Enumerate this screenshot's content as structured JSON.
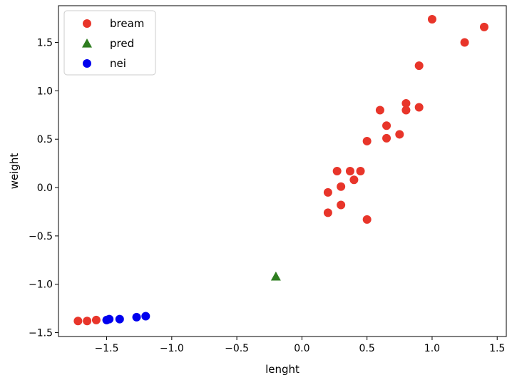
{
  "chart_data": {
    "type": "scatter",
    "xlabel": "lenght",
    "ylabel": "weight",
    "xlim": [
      -1.87,
      1.57
    ],
    "ylim": [
      -1.54,
      1.88
    ],
    "xticks": [
      -1.5,
      -1.0,
      -0.5,
      0.0,
      0.5,
      1.0,
      1.5
    ],
    "xtick_labels": [
      "−1.5",
      "−1.0",
      "−0.5",
      "0.0",
      "0.5",
      "1.0",
      "1.5"
    ],
    "yticks": [
      -1.5,
      -1.0,
      -0.5,
      0.0,
      0.5,
      1.0,
      1.5
    ],
    "ytick_labels": [
      "−1.5",
      "−1.0",
      "−0.5",
      "0.0",
      "0.5",
      "1.0",
      "1.5"
    ],
    "grid": false,
    "legend_position": "top-left",
    "series": [
      {
        "name": "bream",
        "marker": "circle",
        "color": "#e8352a",
        "points": [
          [
            -1.72,
            -1.38
          ],
          [
            -1.65,
            -1.38
          ],
          [
            -1.58,
            -1.37
          ],
          [
            0.2,
            -0.26
          ],
          [
            0.2,
            -0.05
          ],
          [
            0.3,
            -0.18
          ],
          [
            0.3,
            0.01
          ],
          [
            0.27,
            0.17
          ],
          [
            0.37,
            0.17
          ],
          [
            0.4,
            0.08
          ],
          [
            0.45,
            0.17
          ],
          [
            0.5,
            -0.33
          ],
          [
            0.5,
            0.48
          ],
          [
            0.6,
            0.8
          ],
          [
            0.65,
            0.64
          ],
          [
            0.65,
            0.51
          ],
          [
            0.75,
            0.55
          ],
          [
            0.8,
            0.8
          ],
          [
            0.8,
            0.87
          ],
          [
            0.9,
            0.83
          ],
          [
            0.9,
            1.26
          ],
          [
            1.0,
            1.74
          ],
          [
            1.25,
            1.5
          ],
          [
            1.4,
            1.66
          ]
        ]
      },
      {
        "name": "pred",
        "marker": "triangle",
        "color": "#2e7d1f",
        "points": [
          [
            -0.2,
            -0.92
          ]
        ]
      },
      {
        "name": "nei",
        "marker": "circle",
        "color": "#0000ee",
        "points": [
          [
            -1.5,
            -1.37
          ],
          [
            -1.48,
            -1.36
          ],
          [
            -1.4,
            -1.36
          ],
          [
            -1.27,
            -1.34
          ],
          [
            -1.2,
            -1.33
          ]
        ]
      }
    ]
  }
}
